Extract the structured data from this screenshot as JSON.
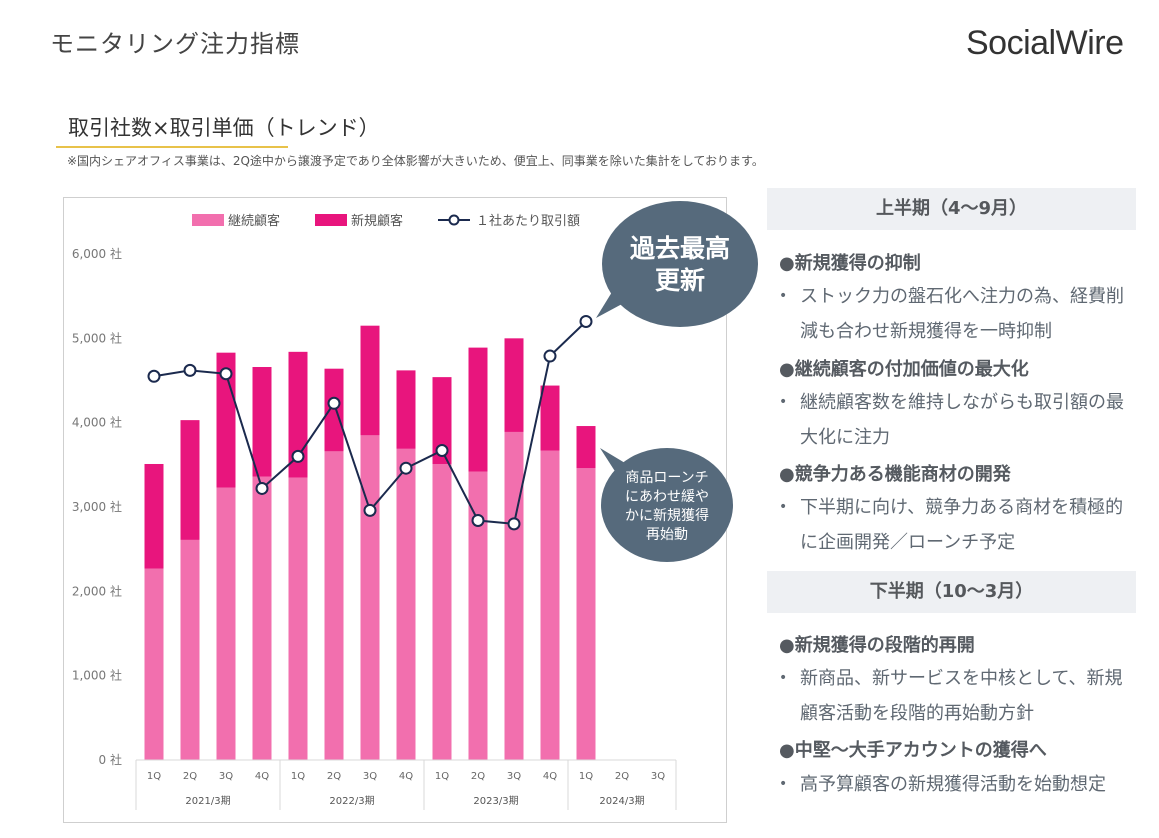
{
  "header": {
    "page_title": "モニタリング注力指標",
    "logo": "SocialWire"
  },
  "section": {
    "title": "取引社数×取引単価（トレンド）",
    "note": "※国内シェアオフィス事業は、2Q途中から譲渡予定であり全体影響が大きいため、便宜上、同事業を除いた集計をしております。"
  },
  "chart_data": {
    "type": "bar",
    "stacked": true,
    "categories": [
      "1Q",
      "2Q",
      "3Q",
      "4Q",
      "1Q",
      "2Q",
      "3Q",
      "4Q",
      "1Q",
      "2Q",
      "3Q",
      "4Q",
      "1Q",
      "2Q",
      "3Q"
    ],
    "groups": [
      {
        "label": "2021/3期",
        "count": 4
      },
      {
        "label": "2022/3期",
        "count": 4
      },
      {
        "label": "2023/3期",
        "count": 4
      },
      {
        "label": "2024/3期",
        "count": 3
      }
    ],
    "series": [
      {
        "name": "継続顧客",
        "type": "bar",
        "color": "#f26fae",
        "values": [
          2270,
          2610,
          3230,
          3360,
          3350,
          3660,
          3850,
          3690,
          3510,
          3420,
          3890,
          3670,
          3460,
          null,
          null
        ]
      },
      {
        "name": "新規顧客",
        "type": "bar",
        "color": "#e8157d",
        "values": [
          1240,
          1420,
          1600,
          1300,
          1490,
          980,
          1300,
          930,
          1030,
          1470,
          1110,
          770,
          500,
          null,
          null
        ]
      },
      {
        "name": "１社あたり取引額",
        "type": "line",
        "color": "#1b2a4e",
        "values": [
          4550,
          4620,
          4580,
          3220,
          3600,
          4230,
          2960,
          3460,
          3670,
          2840,
          2800,
          4790,
          5200,
          null,
          null
        ]
      }
    ],
    "y_axis": {
      "min": 0,
      "max": 6000,
      "step": 1000,
      "unit": "社",
      "ticks": [
        "0 社",
        "1,000 社",
        "2,000 社",
        "3,000 社",
        "4,000 社",
        "5,000 社",
        "6,000 社"
      ]
    },
    "legend_position": "top",
    "grid": false,
    "callouts": [
      {
        "text": "過去最高\n更新",
        "color": "#566a7c"
      },
      {
        "text": "商品ローンチ\nにあわせ緩や\nかに新規獲得\n再始動",
        "color": "#566a7c"
      }
    ]
  },
  "panel": {
    "sections": [
      {
        "header": "上半期（4〜9月）",
        "items": [
          {
            "heading": "●新規獲得の抑制",
            "bullet": "ストック力の盤石化へ注力の為、経費削減も合わせ新規獲得を一時抑制"
          },
          {
            "heading": "●継続顧客の付加価値の最大化",
            "bullet": "継続顧客数を維持しながらも取引額の最大化に注力"
          },
          {
            "heading": "●競争力ある機能商材の開発",
            "bullet": "下半期に向け、競争力ある商材を積極的に企画開発／ローンチ予定"
          }
        ]
      },
      {
        "header": "下半期（10〜3月）",
        "items": [
          {
            "heading": "●新規獲得の段階的再開",
            "bullet": "新商品、新サービスを中核として、新規顧客活動を段階的再始動方針"
          },
          {
            "heading": "●中堅〜大手アカウントの獲得へ",
            "bullet": "高予算顧客の新規獲得活動を始動想定"
          }
        ]
      }
    ],
    "bullet_mark": "•"
  }
}
